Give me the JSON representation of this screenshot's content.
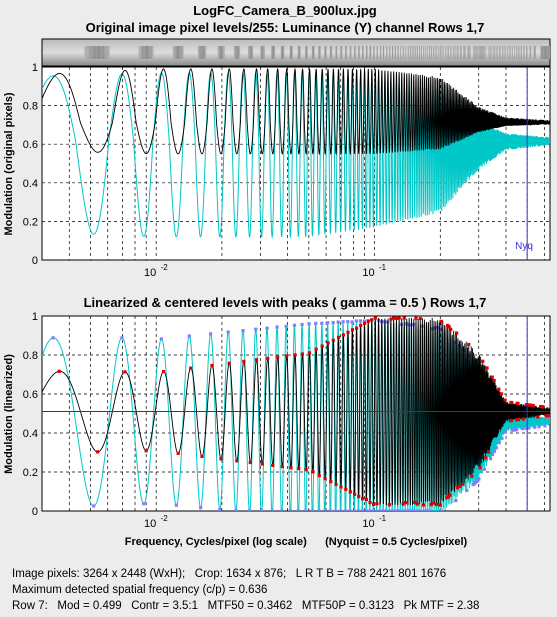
{
  "title": "LogFC_Camera_B_900lux.jpg",
  "subtitle_top": "Original image pixel levels/255:  Luminance (Y) channel  Rows 1,7",
  "subtitle_bottom": "Linearized & centered levels with peaks ( gamma = 0.5 )  Rows 1,7",
  "colors": {
    "black_series": "#000000",
    "cyan_series": "#00c8c8",
    "red_markers": "#e00000",
    "blue_markers": "#8080ff",
    "nyquist": "#3333cc",
    "background": "#ececec"
  },
  "chart_data": [
    {
      "type": "line",
      "name": "top",
      "xscale": "log",
      "xlim": [
        0.003,
        0.636
      ],
      "ylim": [
        0,
        1
      ],
      "ylabel": "Modulation (original pixels)",
      "xlabel": "",
      "x_tick_labels": [
        "10",
        "10"
      ],
      "x_tick_exponents": [
        "-2",
        "-1"
      ],
      "y_tick_labels": [
        "0",
        "0.2",
        "0.4",
        "0.6",
        "0.8",
        "1"
      ],
      "grid": true,
      "nyquist_label": "Nyq",
      "nyquist_x": 0.5,
      "series": [
        {
          "color": "black",
          "mean": 0.71,
          "amp_lo": 0.16,
          "amp_hi": 0.28,
          "envelope_x": [
            0.003,
            0.01,
            0.05,
            0.1,
            0.2,
            0.3,
            0.4,
            0.636
          ],
          "envelope_frac": [
            0.9,
            1.0,
            1.0,
            1.0,
            0.85,
            0.3,
            0.1,
            0.05
          ]
        },
        {
          "color": "cyan",
          "mean": 0.62,
          "amp_lo": 0.5,
          "amp_hi": 0.35,
          "envelope_x": [
            0.003,
            0.01,
            0.05,
            0.1,
            0.2,
            0.3,
            0.4,
            0.636
          ],
          "envelope_frac": [
            0.95,
            1.0,
            1.0,
            0.9,
            0.75,
            0.3,
            0.1,
            0.05
          ]
        }
      ]
    },
    {
      "type": "line",
      "name": "bottom",
      "xscale": "log",
      "xlim": [
        0.003,
        0.636
      ],
      "ylim": [
        0,
        1
      ],
      "ylabel": "Modulation (linearized)",
      "xlabel": "Frequency, Cycles/pixel (log scale)      (Nyquist = 0.5 Cycles/pixel)",
      "x_tick_labels": [
        "10",
        "10"
      ],
      "x_tick_exponents": [
        "-2",
        "-1"
      ],
      "y_tick_labels": [
        "0",
        "0.2",
        "0.4",
        "0.6",
        "0.8",
        "1"
      ],
      "grid": true,
      "nyquist_x": 0.5,
      "center_line": 0.51,
      "series": [
        {
          "color": "black",
          "mean": 0.51,
          "envelope_x": [
            0.003,
            0.004,
            0.01,
            0.05,
            0.1,
            0.2,
            0.3,
            0.4,
            0.636
          ],
          "envelope_amp": [
            0.2,
            0.21,
            0.2,
            0.3,
            0.48,
            0.48,
            0.3,
            0.05,
            0.02
          ]
        },
        {
          "color": "cyan",
          "mean": 0.46,
          "envelope_x": [
            0.003,
            0.004,
            0.01,
            0.05,
            0.1,
            0.2,
            0.3,
            0.4,
            0.636
          ],
          "envelope_amp": [
            0.42,
            0.44,
            0.42,
            0.5,
            0.52,
            0.48,
            0.3,
            0.05,
            0.02
          ]
        }
      ]
    }
  ],
  "info": {
    "line1": "Image pixels: 3264 x 2448 (WxH);   Crop: 1634 x 876;   L R T B = 788 2421 801 1676",
    "line2": "Maximum detected spatial frequency (c/p) = 0.636",
    "line3": "Row 7:   Mod = 0.499   Contr = 3.5:1   MTF50 = 0.3462   MTF50P = 0.3123   Pk MTF = 2.38"
  }
}
